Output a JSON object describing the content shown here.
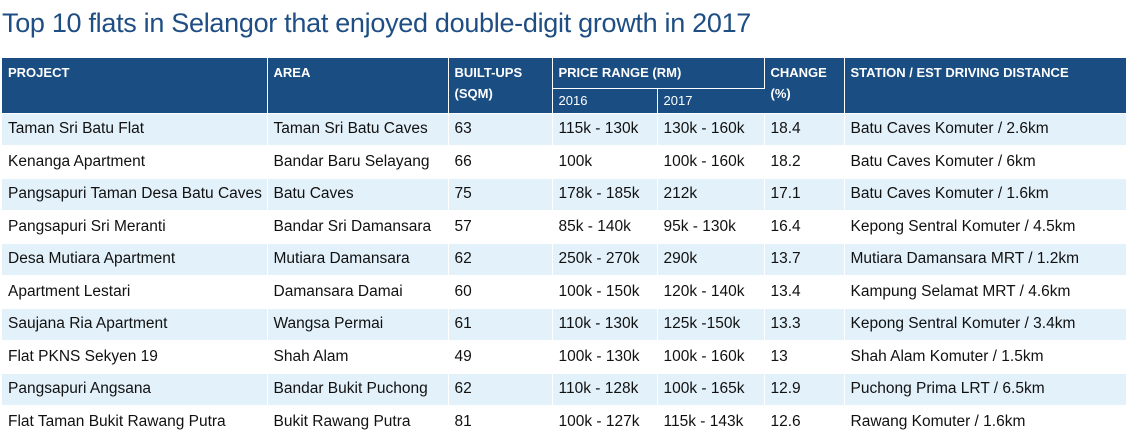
{
  "title": "Top 10 flats in Selangor that enjoyed double-digit growth in 2017",
  "header": {
    "project": "PROJECT",
    "area": "AREA",
    "builtups": "BUILT-UPS",
    "builtups_unit": "(SQM)",
    "price_range": "PRICE RANGE (RM)",
    "year_2016": "2016",
    "year_2017": "2017",
    "change": "CHANGE",
    "change_unit": "(%)",
    "station": "STATION / EST DRIVING DISTANCE"
  },
  "rows": [
    {
      "project": "Taman Sri Batu Flat",
      "area": "Taman Sri Batu Caves",
      "builtups": "63",
      "p2016": "115k - 130k",
      "p2017": "130k - 160k",
      "change": "18.4",
      "station": "Batu Caves Komuter / 2.6km"
    },
    {
      "project": "Kenanga Apartment",
      "area": "Bandar Baru Selayang",
      "builtups": "66",
      "p2016": "100k",
      "p2017": "100k - 160k",
      "change": "18.2",
      "station": "Batu Caves Komuter / 6km"
    },
    {
      "project": "Pangsapuri Taman Desa Batu Caves",
      "area": "Batu Caves",
      "builtups": "75",
      "p2016": "178k - 185k",
      "p2017": "212k",
      "change": "17.1",
      "station": "Batu Caves Komuter / 1.6km"
    },
    {
      "project": "Pangsapuri Sri Meranti",
      "area": "Bandar Sri Damansara",
      "builtups": "57",
      "p2016": "85k - 140k",
      "p2017": "95k - 130k",
      "change": "16.4",
      "station": "Kepong Sentral Komuter / 4.5km"
    },
    {
      "project": "Desa Mutiara Apartment",
      "area": "Mutiara Damansara",
      "builtups": "62",
      "p2016": "250k - 270k",
      "p2017": "290k",
      "change": "13.7",
      "station": "Mutiara Damansara MRT / 1.2km"
    },
    {
      "project": "Apartment Lestari",
      "area": "Damansara Damai",
      "builtups": "60",
      "p2016": "100k - 150k",
      "p2017": "120k - 140k",
      "change": "13.4",
      "station": "Kampung Selamat MRT / 4.6km"
    },
    {
      "project": "Saujana Ria Apartment",
      "area": "Wangsa Permai",
      "builtups": "61",
      "p2016": "110k - 130k",
      "p2017": "125k -150k",
      "change": "13.3",
      "station": "Kepong Sentral Komuter / 3.4km"
    },
    {
      "project": "Flat PKNS Sekyen 19",
      "area": "Shah Alam",
      "builtups": "49",
      "p2016": "100k - 130k",
      "p2017": "100k - 160k",
      "change": "13",
      "station": "Shah Alam Komuter / 1.5km"
    },
    {
      "project": "Pangsapuri Angsana",
      "area": "Bandar Bukit Puchong",
      "builtups": "62",
      "p2016": "110k - 128k",
      "p2017": "100k - 165k",
      "change": "12.9",
      "station": "Puchong Prima LRT / 6.5km"
    },
    {
      "project": "Flat Taman Bukit Rawang Putra",
      "area": "Bukit Rawang Putra",
      "builtups": "81",
      "p2016": "100k - 127k",
      "p2017": "115k - 143k",
      "change": "12.6",
      "station": "Rawang Komuter / 1.6km"
    }
  ]
}
